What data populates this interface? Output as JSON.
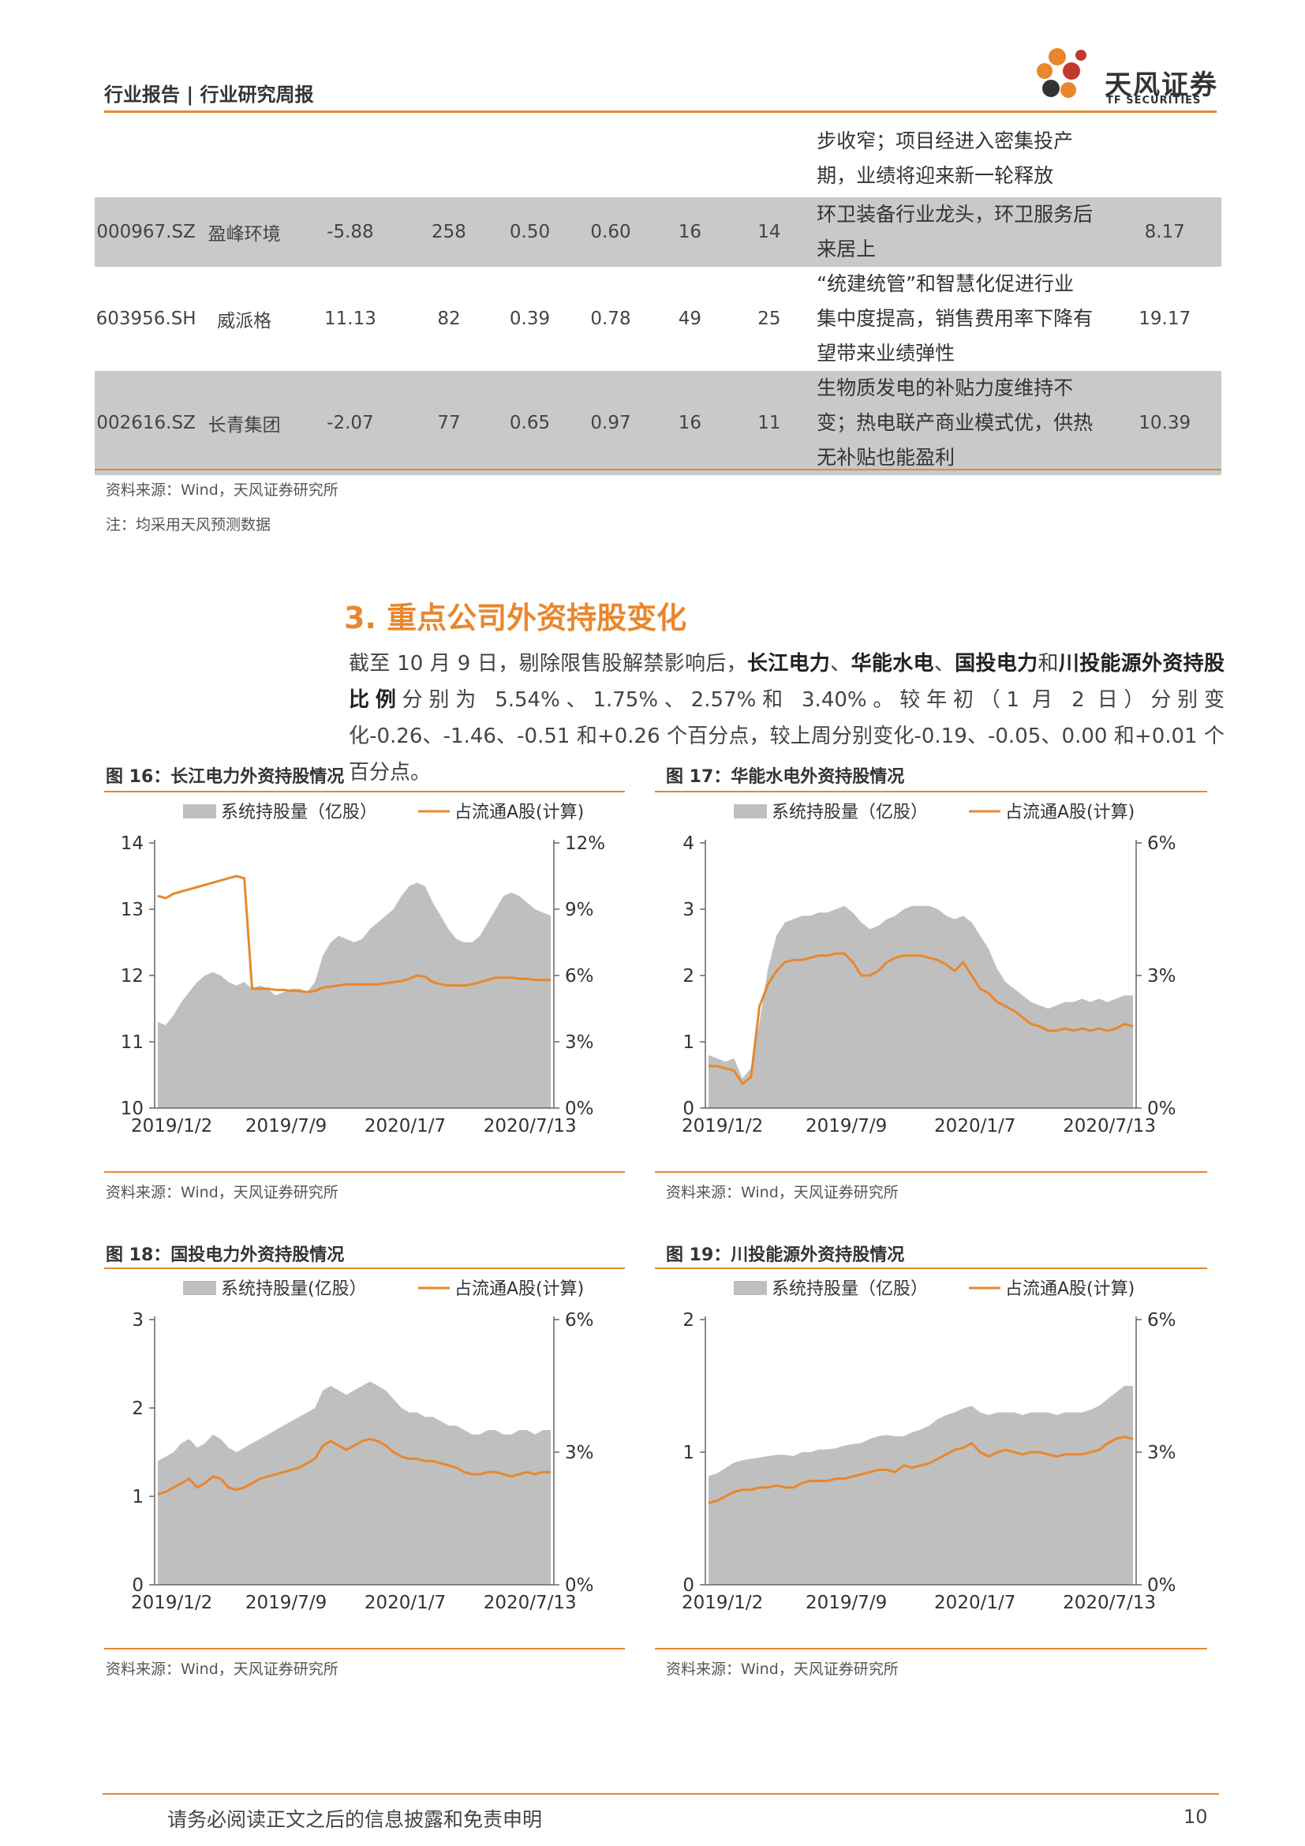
{
  "header": {
    "title": "行业报告 | 行业研究周报",
    "logo_name": "天风证券",
    "logo_sub": "TF SECURITIES",
    "logo_colors": [
      "#E8872E",
      "#C0392B",
      "#333333"
    ]
  },
  "table": {
    "top_desc": [
      "步收窄；项目经进入密集投产",
      "期，业绩将迎来新一轮释放"
    ],
    "rows": [
      {
        "code": "000967.SZ",
        "name": "盈峰环境",
        "c1": "-5.88",
        "c2": "258",
        "c3": "0.50",
        "c4": "0.60",
        "c5": "16",
        "c6": "14",
        "desc": [
          "环卫装备行业龙头，环卫服务后",
          "来居上"
        ],
        "last": "8.17"
      },
      {
        "code": "603956.SH",
        "name": "威派格",
        "c1": "11.13",
        "c2": "82",
        "c3": "0.39",
        "c4": "0.78",
        "c5": "49",
        "c6": "25",
        "desc": [
          "“统建统管”和智慧化促进行业",
          "集中度提高，销售费用率下降有",
          "望带来业绩弹性"
        ],
        "last": "19.17"
      },
      {
        "code": "002616.SZ",
        "name": "长青集团",
        "c1": "-2.07",
        "c2": "77",
        "c3": "0.65",
        "c4": "0.97",
        "c5": "16",
        "c6": "11",
        "desc": [
          "生物质发电的补贴力度维持不",
          "变；热电联产商业模式优，供热",
          "无补贴也能盈利"
        ],
        "last": "10.39"
      }
    ],
    "source": "资料来源：Wind，天风证券研究所",
    "note": "注：均采用天风预测数据"
  },
  "section": {
    "title": "3. 重点公司外资持股变化",
    "p_a": "截至 10 月 9 日，剔除限售股解禁影响后，",
    "p_b1": "长江电力",
    "p_sep1": "、",
    "p_b2": "华能水电",
    "p_sep2": "、",
    "p_b3": "国投电力",
    "p_and": "和",
    "p_b4": "川投能源外资持股比例",
    "p_rest": "分别为 5.54%、1.75%、2.57%和 3.40%。较年初（1 月 2 日）分别变化-0.26、-1.46、-0.51 和+0.26 个百分点，较上周分别变化-0.19、-0.05、0.00 和+0.01 个百分点。"
  },
  "footer": {
    "disclaimer": "请务必阅读正文之后的信息披露和免责申明",
    "page": "10"
  },
  "chart_data": [
    {
      "type": "area",
      "figure_title": "图 16：长江电力外资持股情况",
      "source": "资料来源：Wind，天风证券研究所",
      "x_ticks": [
        "2019/1/2",
        "2019/7/9",
        "2020/1/7",
        "2020/7/13"
      ],
      "x_range": [
        "2019/1/2",
        "2020/10/9"
      ],
      "y_left": {
        "min": 10,
        "max": 14,
        "ticks": [
          "10",
          "11",
          "12",
          "13",
          "14"
        ]
      },
      "y_right": {
        "min": 0,
        "max": 12,
        "ticks": [
          "0%",
          "3%",
          "6%",
          "9%",
          "12%"
        ]
      },
      "series": [
        {
          "name": "系统持股量（亿股）",
          "axis": "left",
          "kind": "area",
          "color": "#BFBFBF",
          "values": [
            11.3,
            11.25,
            11.4,
            11.6,
            11.75,
            11.9,
            12.0,
            12.05,
            12.0,
            11.9,
            11.85,
            11.9,
            11.8,
            11.85,
            11.8,
            11.7,
            11.75,
            11.8,
            11.8,
            11.75,
            11.9,
            12.3,
            12.5,
            12.6,
            12.55,
            12.5,
            12.55,
            12.7,
            12.8,
            12.9,
            13.0,
            13.2,
            13.35,
            13.4,
            13.35,
            13.1,
            12.9,
            12.7,
            12.55,
            12.5,
            12.5,
            12.6,
            12.8,
            13.0,
            13.2,
            13.25,
            13.2,
            13.1,
            13.0,
            12.95,
            12.9
          ]
        },
        {
          "name": "占流通A股(计算)",
          "axis": "right",
          "kind": "line",
          "color": "#E8872E",
          "values": [
            9.6,
            9.5,
            9.7,
            9.8,
            9.9,
            10.0,
            10.1,
            10.2,
            10.3,
            10.4,
            10.5,
            10.4,
            5.4,
            5.4,
            5.4,
            5.35,
            5.35,
            5.3,
            5.3,
            5.25,
            5.3,
            5.45,
            5.5,
            5.55,
            5.6,
            5.6,
            5.6,
            5.6,
            5.6,
            5.65,
            5.7,
            5.75,
            5.85,
            6.0,
            5.95,
            5.7,
            5.6,
            5.55,
            5.55,
            5.55,
            5.6,
            5.7,
            5.8,
            5.9,
            5.9,
            5.9,
            5.85,
            5.85,
            5.8,
            5.8,
            5.8
          ]
        }
      ],
      "legend_position": "top"
    },
    {
      "type": "area",
      "figure_title": "图 17：华能水电外资持股情况",
      "source": "资料来源：Wind，天风证券研究所",
      "x_ticks": [
        "2019/1/2",
        "2019/7/9",
        "2020/1/7",
        "2020/7/13"
      ],
      "x_range": [
        "2019/1/2",
        "2020/10/9"
      ],
      "y_left": {
        "min": 0,
        "max": 4,
        "ticks": [
          "0",
          "1",
          "2",
          "3",
          "4"
        ]
      },
      "y_right": {
        "min": 0,
        "max": 6,
        "ticks": [
          "0%",
          "3%",
          "6%"
        ]
      },
      "series": [
        {
          "name": "系统持股量（亿股）",
          "axis": "left",
          "kind": "area",
          "color": "#BFBFBF",
          "values": [
            0.8,
            0.75,
            0.7,
            0.75,
            0.45,
            0.6,
            1.3,
            2.1,
            2.6,
            2.8,
            2.85,
            2.9,
            2.9,
            2.95,
            2.95,
            3.0,
            3.05,
            2.95,
            2.8,
            2.7,
            2.75,
            2.85,
            2.9,
            3.0,
            3.05,
            3.05,
            3.05,
            3.0,
            2.9,
            2.85,
            2.9,
            2.8,
            2.6,
            2.4,
            2.1,
            1.9,
            1.8,
            1.7,
            1.6,
            1.55,
            1.5,
            1.55,
            1.6,
            1.6,
            1.65,
            1.6,
            1.65,
            1.6,
            1.65,
            1.7,
            1.7
          ]
        },
        {
          "name": "占流通A股(计算)",
          "axis": "right",
          "kind": "line",
          "color": "#E8872E",
          "values": [
            0.95,
            0.95,
            0.9,
            0.85,
            0.55,
            0.7,
            2.3,
            2.8,
            3.1,
            3.3,
            3.35,
            3.35,
            3.4,
            3.45,
            3.45,
            3.5,
            3.5,
            3.3,
            3.0,
            3.0,
            3.1,
            3.3,
            3.4,
            3.45,
            3.45,
            3.45,
            3.4,
            3.35,
            3.25,
            3.1,
            3.3,
            3.0,
            2.7,
            2.6,
            2.4,
            2.3,
            2.2,
            2.05,
            1.9,
            1.85,
            1.75,
            1.75,
            1.8,
            1.75,
            1.8,
            1.75,
            1.8,
            1.75,
            1.8,
            1.9,
            1.85
          ]
        }
      ],
      "legend_position": "top"
    },
    {
      "type": "area",
      "figure_title": "图 18：国投电力外资持股情况",
      "source": "资料来源：Wind，天风证券研究所",
      "x_ticks": [
        "2019/1/2",
        "2019/7/9",
        "2020/1/7",
        "2020/7/13"
      ],
      "x_range": [
        "2019/1/2",
        "2020/10/9"
      ],
      "y_left": {
        "min": 0,
        "max": 3,
        "ticks": [
          "0",
          "1",
          "2",
          "3"
        ]
      },
      "y_right": {
        "min": 0,
        "max": 6,
        "ticks": [
          "0%",
          "3%",
          "6%"
        ]
      },
      "series": [
        {
          "name": "系统持股量(亿股）",
          "axis": "left",
          "kind": "area",
          "color": "#BFBFBF",
          "values": [
            1.4,
            1.45,
            1.5,
            1.6,
            1.65,
            1.55,
            1.6,
            1.7,
            1.65,
            1.55,
            1.5,
            1.55,
            1.6,
            1.65,
            1.7,
            1.75,
            1.8,
            1.85,
            1.9,
            1.95,
            2.0,
            2.2,
            2.25,
            2.2,
            2.15,
            2.2,
            2.25,
            2.3,
            2.25,
            2.2,
            2.1,
            2.0,
            1.95,
            1.95,
            1.9,
            1.9,
            1.85,
            1.8,
            1.8,
            1.75,
            1.7,
            1.7,
            1.75,
            1.75,
            1.7,
            1.7,
            1.75,
            1.75,
            1.7,
            1.75,
            1.75
          ]
        },
        {
          "name": "占流通A股(计算)",
          "axis": "right",
          "kind": "line",
          "color": "#E8872E",
          "values": [
            2.05,
            2.1,
            2.2,
            2.3,
            2.4,
            2.2,
            2.3,
            2.45,
            2.4,
            2.2,
            2.15,
            2.2,
            2.3,
            2.4,
            2.45,
            2.5,
            2.55,
            2.6,
            2.65,
            2.75,
            2.85,
            3.15,
            3.25,
            3.15,
            3.05,
            3.15,
            3.25,
            3.3,
            3.25,
            3.15,
            3.0,
            2.9,
            2.85,
            2.85,
            2.8,
            2.8,
            2.75,
            2.7,
            2.65,
            2.55,
            2.5,
            2.5,
            2.55,
            2.55,
            2.5,
            2.45,
            2.5,
            2.55,
            2.5,
            2.55,
            2.55
          ]
        }
      ],
      "legend_position": "top"
    },
    {
      "type": "area",
      "figure_title": "图 19：川投能源外资持股情况",
      "source": "资料来源：Wind，天风证券研究所",
      "x_ticks": [
        "2019/1/2",
        "2019/7/9",
        "2020/1/7",
        "2020/7/13"
      ],
      "x_range": [
        "2019/1/2",
        "2020/10/9"
      ],
      "y_left": {
        "min": 0,
        "max": 2,
        "ticks": [
          "0",
          "1",
          "2"
        ]
      },
      "y_right": {
        "min": 0,
        "max": 6,
        "ticks": [
          "0%",
          "3%",
          "6%"
        ]
      },
      "series": [
        {
          "name": "系统持股量（亿股）",
          "axis": "left",
          "kind": "area",
          "color": "#BFBFBF",
          "values": [
            0.82,
            0.84,
            0.88,
            0.92,
            0.94,
            0.95,
            0.96,
            0.97,
            0.98,
            0.98,
            0.97,
            1.0,
            1.0,
            1.02,
            1.02,
            1.03,
            1.05,
            1.06,
            1.07,
            1.1,
            1.12,
            1.13,
            1.12,
            1.12,
            1.15,
            1.17,
            1.2,
            1.25,
            1.28,
            1.3,
            1.33,
            1.35,
            1.3,
            1.28,
            1.3,
            1.3,
            1.3,
            1.28,
            1.3,
            1.3,
            1.3,
            1.28,
            1.3,
            1.3,
            1.3,
            1.32,
            1.35,
            1.4,
            1.45,
            1.5,
            1.5
          ]
        },
        {
          "name": "占流通A股(计算)",
          "axis": "right",
          "kind": "line",
          "color": "#E8872E",
          "values": [
            1.85,
            1.9,
            2.0,
            2.1,
            2.15,
            2.15,
            2.2,
            2.2,
            2.25,
            2.2,
            2.2,
            2.3,
            2.35,
            2.35,
            2.35,
            2.4,
            2.4,
            2.45,
            2.5,
            2.55,
            2.6,
            2.6,
            2.55,
            2.7,
            2.65,
            2.7,
            2.75,
            2.85,
            2.95,
            3.05,
            3.1,
            3.2,
            3.0,
            2.9,
            3.0,
            3.05,
            3.0,
            2.95,
            3.0,
            3.0,
            2.95,
            2.9,
            2.95,
            2.95,
            2.95,
            3.0,
            3.05,
            3.2,
            3.3,
            3.35,
            3.3
          ]
        }
      ],
      "legend_position": "top"
    }
  ]
}
